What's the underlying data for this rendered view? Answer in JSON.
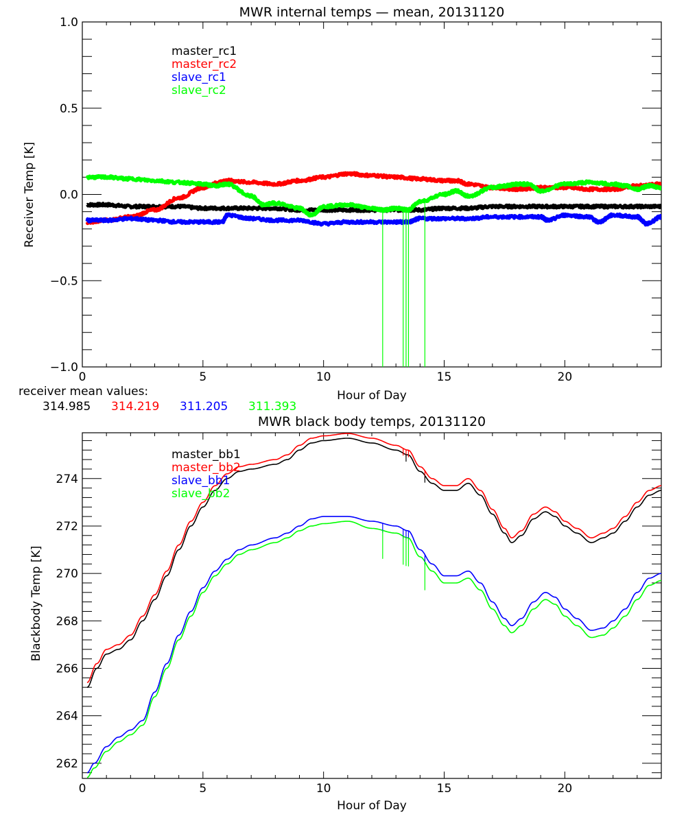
{
  "chart_data": [
    {
      "type": "line",
      "title": "MWR internal temps — mean, 20131120",
      "xlabel": "Hour of Day",
      "ylabel": "Receiver Temp [K]",
      "xlim": [
        0,
        24
      ],
      "ylim": [
        -1.0,
        1.0
      ],
      "xticks": [
        0,
        5,
        10,
        15,
        20
      ],
      "xtick_labels": [
        "0",
        "5",
        "10",
        "15",
        "20"
      ],
      "yticks": [
        -1.0,
        -0.5,
        0.0,
        0.5,
        1.0
      ],
      "ytick_labels": [
        "-1.0",
        "-0.5",
        "0.0",
        "0.5",
        "1.0"
      ],
      "grid": false,
      "legend_position": "top-left",
      "series": [
        {
          "name": "master_rc1",
          "color": "#000000",
          "x": [
            0.2,
            1,
            2,
            3,
            4,
            5,
            6,
            7,
            8,
            9,
            10,
            11,
            12,
            13,
            14,
            15,
            16,
            17,
            18,
            19,
            20,
            21,
            22,
            23,
            24
          ],
          "y": [
            -0.06,
            -0.06,
            -0.07,
            -0.07,
            -0.07,
            -0.08,
            -0.08,
            -0.08,
            -0.08,
            -0.09,
            -0.09,
            -0.09,
            -0.09,
            -0.09,
            -0.09,
            -0.08,
            -0.08,
            -0.07,
            -0.07,
            -0.07,
            -0.07,
            -0.07,
            -0.07,
            -0.07,
            -0.07
          ]
        },
        {
          "name": "master_rc2",
          "color": "#ff0000",
          "x": [
            0.2,
            1,
            2,
            3,
            4,
            5,
            5.7,
            6,
            7,
            8,
            9,
            10,
            11,
            12,
            13,
            14,
            15,
            15.5,
            16,
            17,
            18,
            19,
            20,
            21,
            22,
            23,
            24
          ],
          "y": [
            -0.16,
            -0.15,
            -0.13,
            -0.09,
            -0.02,
            0.04,
            0.07,
            0.08,
            0.07,
            0.06,
            0.08,
            0.1,
            0.12,
            0.11,
            0.1,
            0.09,
            0.08,
            0.08,
            0.06,
            0.04,
            0.03,
            0.04,
            0.04,
            0.03,
            0.03,
            0.05,
            0.06
          ]
        },
        {
          "name": "slave_rc1",
          "color": "#0000ff",
          "x": [
            0.2,
            1,
            2,
            3,
            4,
            5,
            5.8,
            6,
            7,
            8,
            9,
            10,
            11,
            12,
            13,
            13.5,
            14,
            15,
            16,
            17,
            18,
            19,
            19.3,
            20,
            21,
            21.4,
            22,
            23,
            23.4,
            24
          ],
          "y": [
            -0.15,
            -0.15,
            -0.14,
            -0.15,
            -0.16,
            -0.16,
            -0.16,
            -0.12,
            -0.14,
            -0.15,
            -0.15,
            -0.17,
            -0.16,
            -0.16,
            -0.16,
            -0.16,
            -0.14,
            -0.14,
            -0.14,
            -0.13,
            -0.13,
            -0.13,
            -0.15,
            -0.12,
            -0.13,
            -0.16,
            -0.12,
            -0.13,
            -0.17,
            -0.13
          ]
        },
        {
          "name": "slave_rc2",
          "color": "#00ff00",
          "x": [
            0.2,
            1,
            2,
            3,
            4,
            5,
            5.5,
            6,
            7,
            7.5,
            8,
            9,
            9.5,
            10,
            11,
            12,
            12.5,
            13,
            13.5,
            14,
            15,
            15.5,
            16,
            17,
            17.5,
            18,
            18.5,
            19,
            20,
            21,
            22,
            22.5,
            23,
            23.5,
            24
          ],
          "y": [
            0.1,
            0.1,
            0.09,
            0.08,
            0.07,
            0.06,
            0.05,
            0.06,
            -0.01,
            -0.06,
            -0.05,
            -0.08,
            -0.12,
            -0.07,
            -0.06,
            -0.08,
            -0.09,
            -0.08,
            -0.09,
            -0.04,
            0.0,
            0.02,
            -0.01,
            0.04,
            0.05,
            0.06,
            0.06,
            0.02,
            0.06,
            0.07,
            0.06,
            0.05,
            0.03,
            0.05,
            0.04
          ]
        }
      ],
      "spikes": [
        {
          "series": "slave_rc2",
          "x": [
            12.45,
            13.3,
            13.42,
            13.52,
            14.2
          ],
          "y_min": -1.0
        }
      ],
      "annotations": {
        "label": "receiver mean values:",
        "values": [
          {
            "text": "314.985",
            "color": "#000000"
          },
          {
            "text": "314.219",
            "color": "#ff0000"
          },
          {
            "text": "311.205",
            "color": "#0000ff"
          },
          {
            "text": "311.393",
            "color": "#00ff00"
          }
        ]
      }
    },
    {
      "type": "line",
      "title": "MWR black body temps, 20131120",
      "xlabel": "Hour of Day",
      "ylabel": "Blackbody Temp [K]",
      "xlim": [
        0,
        24
      ],
      "ylim": [
        261.36,
        275.93
      ],
      "xticks": [
        0,
        5,
        10,
        15,
        20
      ],
      "xtick_labels": [
        "0",
        "5",
        "10",
        "15",
        "20"
      ],
      "yticks": [
        262,
        264,
        266,
        268,
        270,
        272,
        274
      ],
      "ytick_labels": [
        "262",
        "264",
        "266",
        "268",
        "270",
        "272",
        "274"
      ],
      "grid": false,
      "legend_position": "top-left",
      "series": [
        {
          "name": "master_bb1",
          "color": "#000000",
          "x": [
            0.2,
            0.6,
            1.0,
            1.5,
            2.0,
            2.5,
            3.0,
            3.5,
            4.0,
            4.5,
            5.0,
            5.5,
            6.0,
            6.5,
            7.0,
            8.0,
            8.5,
            9.0,
            9.5,
            10.0,
            11.0,
            12.0,
            13.0,
            13.5,
            14.0,
            14.5,
            15.0,
            15.5,
            16.0,
            16.5,
            17.0,
            17.5,
            17.8,
            18.2,
            18.7,
            19.2,
            19.6,
            20.0,
            20.5,
            21.1,
            21.6,
            22.0,
            22.5,
            23.0,
            23.5,
            24.0
          ],
          "y": [
            265.2,
            266.0,
            266.6,
            266.8,
            267.2,
            268.0,
            268.9,
            269.9,
            271.0,
            272.0,
            272.8,
            273.5,
            274.0,
            274.3,
            274.4,
            274.6,
            274.8,
            275.2,
            275.5,
            275.6,
            275.7,
            275.5,
            275.2,
            275.0,
            274.3,
            273.8,
            273.5,
            273.5,
            273.8,
            273.3,
            272.5,
            271.7,
            271.3,
            271.6,
            272.3,
            272.6,
            272.4,
            272.0,
            271.7,
            271.3,
            271.5,
            271.7,
            272.2,
            272.8,
            273.3,
            273.5
          ]
        },
        {
          "name": "master_bb2",
          "color": "#ff0000",
          "x": [
            0.2,
            0.6,
            1.0,
            1.5,
            2.0,
            2.5,
            3.0,
            3.5,
            4.0,
            4.5,
            5.0,
            5.5,
            6.0,
            6.5,
            7.0,
            8.0,
            8.5,
            9.0,
            9.5,
            10.0,
            11.0,
            12.0,
            13.0,
            13.5,
            14.0,
            14.5,
            15.0,
            15.5,
            16.0,
            16.5,
            17.0,
            17.5,
            17.8,
            18.2,
            18.7,
            19.2,
            19.6,
            20.0,
            20.5,
            21.1,
            21.6,
            22.0,
            22.5,
            23.0,
            23.5,
            24.0
          ],
          "y": [
            265.4,
            266.2,
            266.8,
            267.0,
            267.4,
            268.2,
            269.1,
            270.1,
            271.2,
            272.2,
            273.0,
            273.7,
            274.2,
            274.5,
            274.6,
            274.8,
            275.0,
            275.4,
            275.7,
            275.8,
            275.9,
            275.7,
            275.4,
            275.2,
            274.5,
            274.0,
            273.7,
            273.7,
            274.0,
            273.5,
            272.7,
            271.9,
            271.5,
            271.8,
            272.5,
            272.8,
            272.6,
            272.2,
            271.9,
            271.5,
            271.7,
            271.9,
            272.4,
            273.0,
            273.5,
            273.7
          ]
        },
        {
          "name": "slave_bb1",
          "color": "#0000ff",
          "x": [
            0.2,
            0.5,
            1.0,
            1.5,
            2.0,
            2.5,
            3.0,
            3.5,
            4.0,
            4.5,
            5.0,
            5.5,
            6.0,
            6.5,
            7.0,
            8.0,
            8.5,
            9.0,
            9.5,
            10.0,
            11.0,
            12.0,
            13.0,
            13.5,
            14.0,
            14.5,
            15.0,
            15.5,
            16.0,
            16.5,
            17.0,
            17.5,
            17.8,
            18.2,
            18.7,
            19.2,
            19.6,
            20.0,
            20.5,
            21.1,
            21.6,
            22.0,
            22.5,
            23.0,
            23.5,
            24.0
          ],
          "y": [
            261.6,
            262.0,
            262.7,
            263.1,
            263.4,
            263.8,
            265.0,
            266.2,
            267.4,
            268.4,
            269.4,
            270.1,
            270.6,
            271.0,
            271.2,
            271.5,
            271.7,
            272.0,
            272.3,
            272.4,
            272.4,
            272.2,
            272.0,
            271.8,
            271.0,
            270.4,
            269.9,
            269.9,
            270.1,
            269.6,
            268.8,
            268.1,
            267.8,
            268.1,
            268.8,
            269.2,
            269.0,
            268.5,
            268.1,
            267.6,
            267.7,
            268.0,
            268.5,
            269.2,
            269.8,
            270.0
          ]
        },
        {
          "name": "slave_bb2",
          "color": "#00ff00",
          "x": [
            0.2,
            0.5,
            1.0,
            1.5,
            2.0,
            2.5,
            3.0,
            3.5,
            4.0,
            4.5,
            5.0,
            5.5,
            6.0,
            6.5,
            7.0,
            8.0,
            8.5,
            9.0,
            9.5,
            10.0,
            11.0,
            12.0,
            13.0,
            13.5,
            14.0,
            14.5,
            15.0,
            15.5,
            16.0,
            16.5,
            17.0,
            17.5,
            17.8,
            18.2,
            18.7,
            19.2,
            19.6,
            20.0,
            20.5,
            21.1,
            21.6,
            22.0,
            22.5,
            23.0,
            23.5,
            24.0
          ],
          "y": [
            261.4,
            261.8,
            262.5,
            262.9,
            263.2,
            263.6,
            264.8,
            266.0,
            267.2,
            268.2,
            269.2,
            269.9,
            270.4,
            270.8,
            271.0,
            271.3,
            271.5,
            271.8,
            272.0,
            272.1,
            272.2,
            271.9,
            271.7,
            271.5,
            270.7,
            270.1,
            269.6,
            269.6,
            269.8,
            269.3,
            268.5,
            267.8,
            267.5,
            267.8,
            268.5,
            268.9,
            268.7,
            268.2,
            267.8,
            267.3,
            267.4,
            267.7,
            268.2,
            268.9,
            269.5,
            269.7
          ]
        }
      ],
      "spikes": [
        {
          "series": "master_bb2",
          "x": [
            13.3,
            13.42,
            13.52,
            14.2
          ],
          "y_drop": 0.3
        },
        {
          "series": "master_bb1",
          "x": [
            13.42,
            14.2
          ],
          "y_drop": 0.3
        },
        {
          "series": "slave_bb1",
          "x": [
            12.45,
            13.3,
            13.42,
            13.52,
            14.2
          ],
          "y_drop": 0.4
        },
        {
          "series": "slave_bb2",
          "x": [
            12.45,
            13.3,
            13.42,
            13.52,
            14.2
          ],
          "y_drop": 1.2
        }
      ]
    }
  ]
}
